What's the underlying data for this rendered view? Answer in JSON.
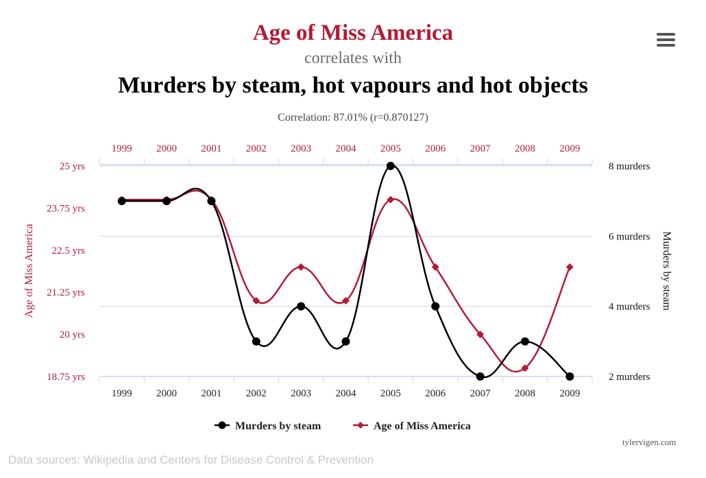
{
  "header": {
    "title_line1": "Age of Miss America",
    "title_line2": "correlates with",
    "title_line3": "Murders by steam, hot vapours and hot objects",
    "correlation": "Correlation: 87.01% (r=0.870127)"
  },
  "menu": {
    "icon": "hamburger-menu-icon"
  },
  "colors": {
    "red": "#b31b34",
    "black": "#000000",
    "grid": "#ccd6e0",
    "axis": "#ccd6eb"
  },
  "chart_data": {
    "type": "line",
    "categories": [
      "1999",
      "2000",
      "2001",
      "2002",
      "2003",
      "2004",
      "2005",
      "2006",
      "2007",
      "2008",
      "2009"
    ],
    "series": [
      {
        "name": "Murders by steam",
        "axis": "right",
        "color": "#000000",
        "marker": "circle",
        "values": [
          7,
          7,
          7,
          3,
          4,
          3,
          8,
          4,
          2,
          3,
          2
        ]
      },
      {
        "name": "Age of Miss America",
        "axis": "left",
        "color": "#b31b34",
        "marker": "diamond",
        "values": [
          24,
          24,
          24,
          21,
          22,
          21,
          24,
          22,
          20,
          19,
          22
        ]
      }
    ],
    "left_axis": {
      "label": "Age of Miss America",
      "range": [
        18.75,
        25
      ],
      "ticks": [
        {
          "value": 25,
          "label": "25 yrs"
        },
        {
          "value": 23.75,
          "label": "23.75 yrs"
        },
        {
          "value": 22.5,
          "label": "22.5 yrs"
        },
        {
          "value": 21.25,
          "label": "21.25 yrs"
        },
        {
          "value": 20,
          "label": "20 yrs"
        },
        {
          "value": 18.75,
          "label": "18.75 yrs"
        }
      ]
    },
    "right_axis": {
      "label": "Murders by steam",
      "range": [
        2,
        8
      ],
      "ticks": [
        {
          "value": 8,
          "label": "8 murders"
        },
        {
          "value": 6,
          "label": "6 murders"
        },
        {
          "value": 4,
          "label": "4 murders"
        },
        {
          "value": 2,
          "label": "2 murders"
        }
      ]
    },
    "legend": {
      "placement": "bottom-center",
      "items": [
        "Murders by steam",
        "Age of Miss America"
      ]
    },
    "grid": true
  },
  "footer": {
    "credit": "tylervigen.com",
    "sources": "Data sources: Wikipedia and Centers for Disease Control & Prevention"
  }
}
